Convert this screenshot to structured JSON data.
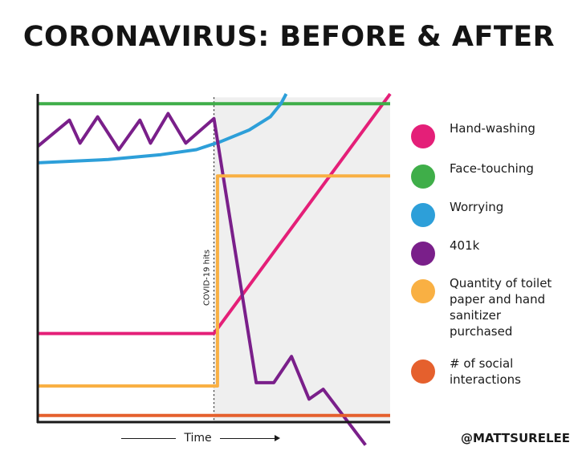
{
  "chart_data": {
    "type": "line",
    "title": "CORONAVIRUS: BEFORE & AFTER",
    "xlabel": "Time",
    "ylabel": "",
    "xlim": [
      0,
      100
    ],
    "ylim": [
      0,
      100
    ],
    "event": {
      "label": "COVID-19 hits",
      "x": 50
    },
    "series": [
      {
        "name": "Hand-washing",
        "color": "#e41f78",
        "points": [
          [
            0,
            27
          ],
          [
            50,
            27
          ],
          [
            100,
            100
          ]
        ]
      },
      {
        "name": "Face-touching",
        "color": "#3fae49",
        "points": [
          [
            0,
            97
          ],
          [
            100,
            97
          ]
        ]
      },
      {
        "name": "Worrying",
        "color": "#2d9fd9",
        "points": [
          [
            0,
            79
          ],
          [
            20,
            80
          ],
          [
            35,
            81.5
          ],
          [
            45,
            83
          ],
          [
            52,
            85.5
          ],
          [
            60,
            89
          ],
          [
            66,
            93
          ],
          [
            69,
            97
          ],
          [
            70.5,
            100
          ]
        ]
      },
      {
        "name": "401k",
        "color": "#7a1f8a",
        "points": [
          [
            0,
            84
          ],
          [
            9,
            92
          ],
          [
            12,
            85
          ],
          [
            17,
            93
          ],
          [
            23,
            83
          ],
          [
            29,
            92
          ],
          [
            32,
            85
          ],
          [
            37,
            94
          ],
          [
            42,
            85
          ],
          [
            50,
            92.5
          ],
          [
            62,
            12
          ],
          [
            67,
            12
          ],
          [
            72,
            20
          ],
          [
            77,
            7
          ],
          [
            81,
            10
          ],
          [
            93,
            -7
          ]
        ]
      },
      {
        "name": "Quantity of toilet paper and hand sanitizer purchased",
        "color": "#f9b043",
        "points": [
          [
            0,
            11
          ],
          [
            51,
            11
          ],
          [
            51,
            75
          ],
          [
            100,
            75
          ]
        ]
      },
      {
        "name": "# of social interactions",
        "color": "#e5602d",
        "points": [
          [
            0,
            2
          ],
          [
            100,
            2
          ]
        ]
      }
    ]
  },
  "legend": [
    {
      "label": "Hand-washing",
      "color": "#e41f78"
    },
    {
      "label": "Face-touching",
      "color": "#3fae49"
    },
    {
      "label": "Worrying",
      "color": "#2d9fd9"
    },
    {
      "label": "401k",
      "color": "#7a1f8a"
    },
    {
      "label": "Quantity of toilet paper and hand sanitizer purchased",
      "color": "#f9b043"
    },
    {
      "label": "# of social interactions",
      "color": "#e5602d"
    }
  ],
  "credit": "@MATTSURELEE",
  "colors": {
    "after_shading": "#efefef",
    "axis": "#1a1a1a"
  }
}
